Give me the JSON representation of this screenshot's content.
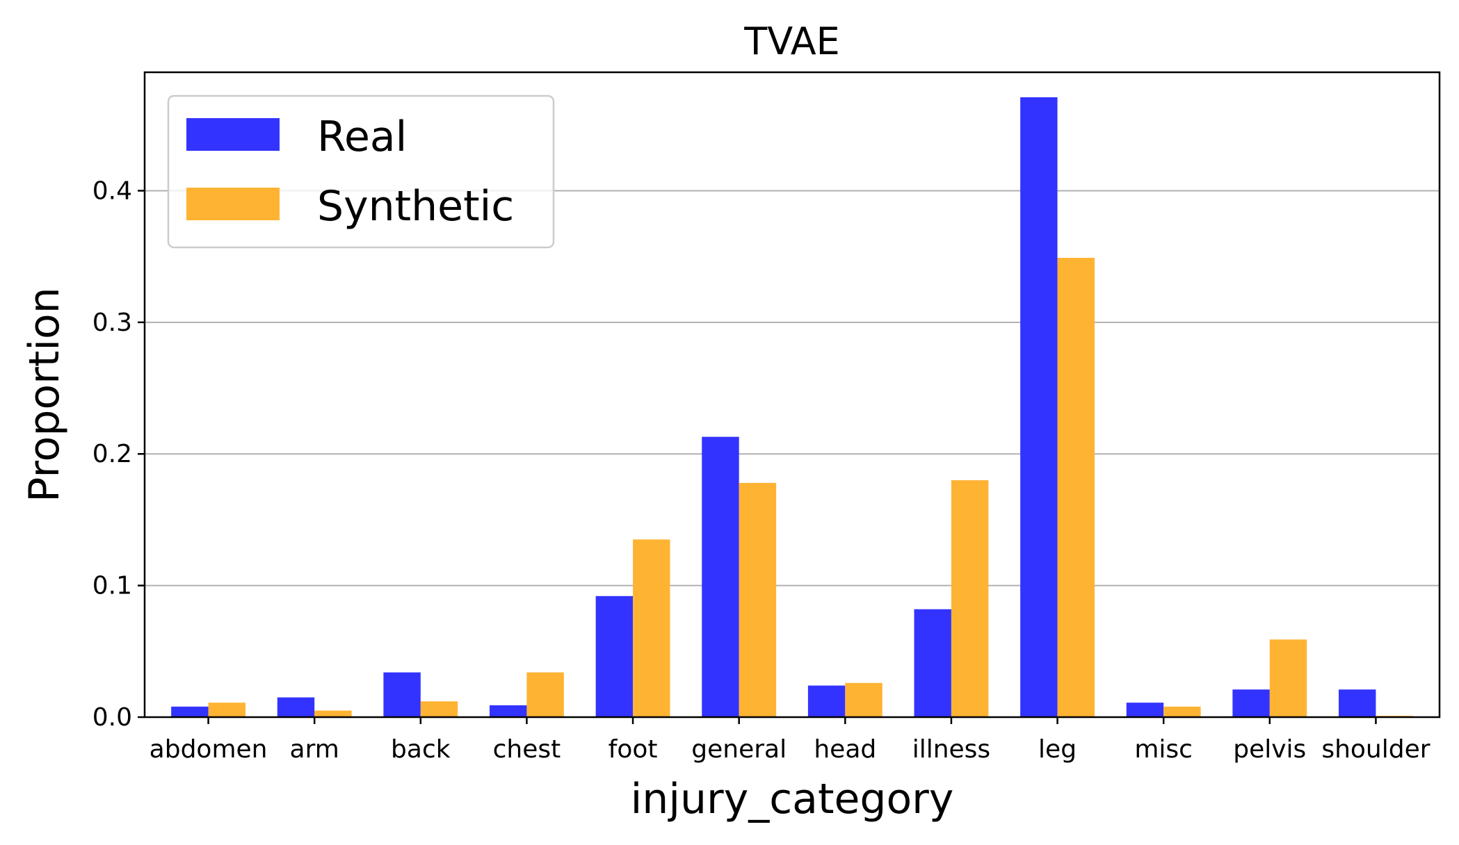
{
  "chart_data": {
    "type": "bar",
    "title": "TVAE",
    "xlabel": "injury_category",
    "ylabel": "Proportion",
    "categories": [
      "abdomen",
      "arm",
      "back",
      "chest",
      "foot",
      "general",
      "head",
      "illness",
      "leg",
      "misc",
      "pelvis",
      "shoulder"
    ],
    "series": [
      {
        "name": "Real",
        "color": "#3333ff",
        "values": [
          0.008,
          0.015,
          0.034,
          0.009,
          0.092,
          0.213,
          0.024,
          0.082,
          0.471,
          0.011,
          0.021,
          0.021
        ]
      },
      {
        "name": "Synthetic",
        "color": "#ffb333",
        "values": [
          0.011,
          0.005,
          0.012,
          0.034,
          0.135,
          0.178,
          0.026,
          0.18,
          0.349,
          0.008,
          0.059,
          0.001
        ]
      }
    ],
    "ylim": [
      0,
      0.49
    ],
    "yticks": [
      0.0,
      0.1,
      0.2,
      0.3,
      0.4
    ],
    "ytick_labels": [
      "0.0",
      "0.1",
      "0.2",
      "0.3",
      "0.4"
    ],
    "grid": "y",
    "legend": "top-left"
  }
}
